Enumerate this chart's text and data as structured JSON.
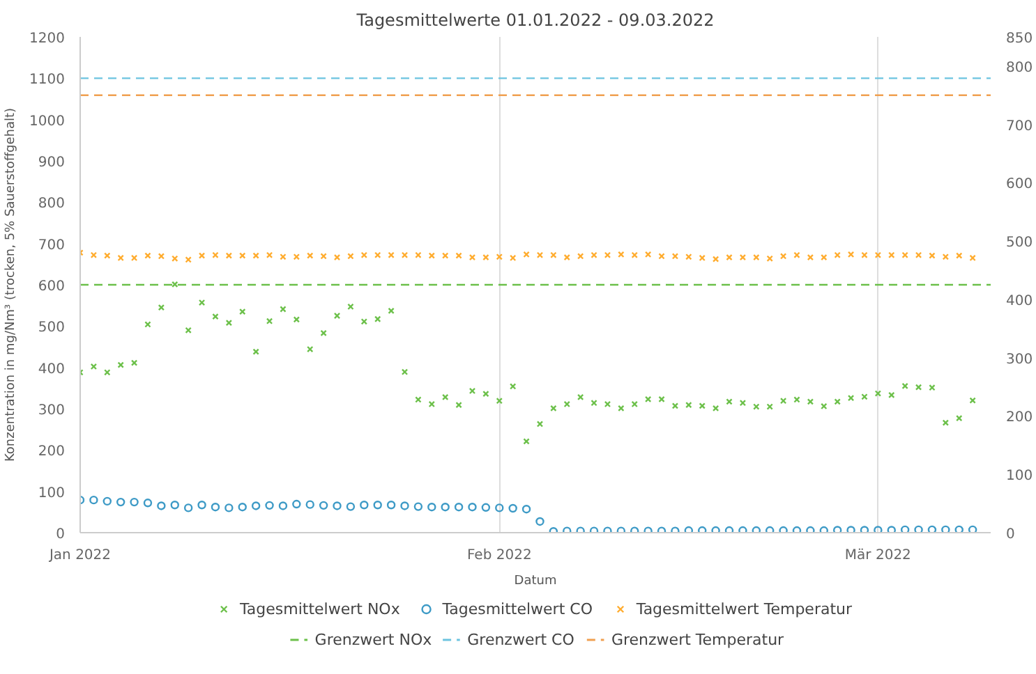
{
  "chart_data": {
    "type": "scatter",
    "title": "Tagesmittelwerte 01.01.2022 - 09.03.2022",
    "xlabel": "Datum",
    "ylabel": "Konzentration in mg/Nm³ (trocken, 5% Sauerstoffgehalt)",
    "x": [
      "2022-01-01",
      "2022-01-02",
      "2022-01-03",
      "2022-01-04",
      "2022-01-05",
      "2022-01-06",
      "2022-01-07",
      "2022-01-08",
      "2022-01-09",
      "2022-01-10",
      "2022-01-11",
      "2022-01-12",
      "2022-01-13",
      "2022-01-14",
      "2022-01-15",
      "2022-01-16",
      "2022-01-17",
      "2022-01-18",
      "2022-01-19",
      "2022-01-20",
      "2022-01-21",
      "2022-01-22",
      "2022-01-23",
      "2022-01-24",
      "2022-01-25",
      "2022-01-26",
      "2022-01-27",
      "2022-01-28",
      "2022-01-29",
      "2022-01-30",
      "2022-01-31",
      "2022-02-01",
      "2022-02-02",
      "2022-02-03",
      "2022-02-04",
      "2022-02-05",
      "2022-02-06",
      "2022-02-07",
      "2022-02-08",
      "2022-02-09",
      "2022-02-10",
      "2022-02-11",
      "2022-02-12",
      "2022-02-13",
      "2022-02-14",
      "2022-02-15",
      "2022-02-16",
      "2022-02-17",
      "2022-02-18",
      "2022-02-19",
      "2022-02-20",
      "2022-02-21",
      "2022-02-22",
      "2022-02-23",
      "2022-02-24",
      "2022-02-25",
      "2022-02-26",
      "2022-02-27",
      "2022-02-28",
      "2022-03-01",
      "2022-03-02",
      "2022-03-03",
      "2022-03-04",
      "2022-03-05",
      "2022-03-06",
      "2022-03-07",
      "2022-03-08"
    ],
    "series": [
      {
        "name": "Tagesmittelwert NOx",
        "color": "#6cc04a",
        "marker": "cross",
        "values": [
          388,
          402,
          388,
          406,
          411,
          504,
          545,
          601,
          490,
          557,
          523,
          508,
          535,
          438,
          512,
          541,
          516,
          444,
          483,
          525,
          547,
          511,
          517,
          537,
          389,
          322,
          311,
          328,
          309,
          343,
          336,
          319,
          354,
          221,
          263,
          301,
          311,
          328,
          314,
          311,
          301,
          311,
          323,
          323,
          307,
          309,
          307,
          301,
          317,
          314,
          305,
          305,
          319,
          322,
          317,
          306,
          317,
          326,
          329,
          337,
          333,
          355,
          352,
          351,
          266,
          277,
          320
        ]
      },
      {
        "name": "Tagesmittelwert CO",
        "color": "#3d9ac6",
        "marker": "circle",
        "values": [
          79,
          79,
          76,
          74,
          74,
          72,
          65,
          67,
          60,
          67,
          62,
          60,
          62,
          65,
          66,
          65,
          69,
          68,
          66,
          65,
          63,
          67,
          67,
          67,
          65,
          63,
          62,
          62,
          62,
          62,
          61,
          60,
          59,
          57,
          27,
          3,
          4,
          4,
          4,
          4,
          4,
          4,
          4,
          4,
          4,
          5,
          5,
          5,
          5,
          5,
          5,
          5,
          5,
          5,
          5,
          5,
          6,
          6,
          6,
          6,
          6,
          7,
          7,
          7,
          7,
          7,
          7
        ]
      },
      {
        "name": "Tagesmittelwert Temperatur",
        "color": "#ffac2e",
        "marker": "cross",
        "axis": "y2",
        "values": [
          480,
          476,
          475,
          471,
          471,
          475,
          474,
          470,
          468,
          475,
          476,
          475,
          475,
          475,
          476,
          473,
          473,
          475,
          474,
          472,
          474,
          476,
          476,
          476,
          476,
          476,
          475,
          475,
          475,
          472,
          472,
          473,
          471,
          477,
          476,
          476,
          472,
          474,
          476,
          476,
          477,
          476,
          477,
          474,
          474,
          473,
          471,
          469,
          472,
          472,
          472,
          470,
          474,
          476,
          472,
          472,
          476,
          477,
          476,
          476,
          476,
          476,
          476,
          475,
          473,
          475,
          471
        ]
      }
    ],
    "ref_lines": [
      {
        "axis": "y",
        "value": 600,
        "label": "Grenzwert NOx",
        "color": "#6cc04a",
        "line_style": "dashed"
      },
      {
        "axis": "y",
        "value": 1100,
        "label": "Grenzwert CO",
        "color": "#6cc4e0",
        "line_style": "dashed"
      },
      {
        "axis": "y2",
        "value": 750,
        "label": "Grenzwert Temperatur",
        "color": "#f0a050",
        "line_style": "dashed"
      }
    ],
    "xlim": [
      "2022-01-01",
      "2022-03-09T08:00"
    ],
    "xticks": [
      {
        "value": "2022-01-01",
        "label": "Jan 2022"
      },
      {
        "value": "2022-02-01",
        "label": "Feb 2022"
      },
      {
        "value": "2022-03-01",
        "label": "Mär 2022"
      }
    ],
    "ylim": [
      0,
      1200
    ],
    "yticks": [
      0,
      100,
      200,
      300,
      400,
      500,
      600,
      700,
      800,
      900,
      1000,
      1100,
      1200
    ],
    "y2lim": [
      0,
      850
    ],
    "y2ticks": [
      0,
      100,
      200,
      300,
      400,
      500,
      600,
      700,
      800,
      850
    ],
    "grid": "x",
    "legend": "bottom"
  }
}
